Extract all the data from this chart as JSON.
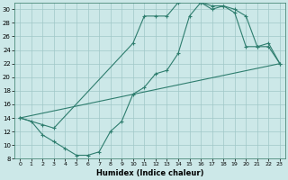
{
  "xlabel": "Humidex (Indice chaleur)",
  "bg_color": "#cce8e8",
  "line_color": "#2e7d6e",
  "grid_color": "#a0c8c8",
  "xlim": [
    -0.5,
    23.5
  ],
  "ylim": [
    8,
    31
  ],
  "xticks": [
    0,
    1,
    2,
    3,
    4,
    5,
    6,
    7,
    8,
    9,
    10,
    11,
    12,
    13,
    14,
    15,
    16,
    17,
    18,
    19,
    20,
    21,
    22,
    23
  ],
  "yticks": [
    8,
    10,
    12,
    14,
    16,
    18,
    20,
    22,
    24,
    26,
    28,
    30
  ],
  "line1_x": [
    0,
    1,
    2,
    3,
    4,
    5,
    6,
    7,
    8,
    9,
    10,
    11,
    12,
    13,
    14,
    15,
    16,
    17,
    18,
    19,
    20,
    21,
    22,
    23
  ],
  "line1_y": [
    14,
    13.5,
    11.5,
    10.5,
    9.5,
    8.5,
    8.5,
    9,
    12,
    13.5,
    17.5,
    18.5,
    20.5,
    21,
    23.5,
    29,
    31,
    30.5,
    30.5,
    29.5,
    24.5,
    24.5,
    25,
    22
  ],
  "line2_x": [
    0,
    2,
    3,
    10,
    11,
    12,
    13,
    14,
    15,
    16,
    17,
    18,
    19,
    20,
    21,
    22,
    23
  ],
  "line2_y": [
    14,
    13,
    12.5,
    25,
    29,
    29,
    29,
    31,
    31.5,
    31,
    30,
    30.5,
    30,
    29,
    24.5,
    24.5,
    22
  ],
  "line3_x": [
    0,
    23
  ],
  "line3_y": [
    14,
    22
  ]
}
